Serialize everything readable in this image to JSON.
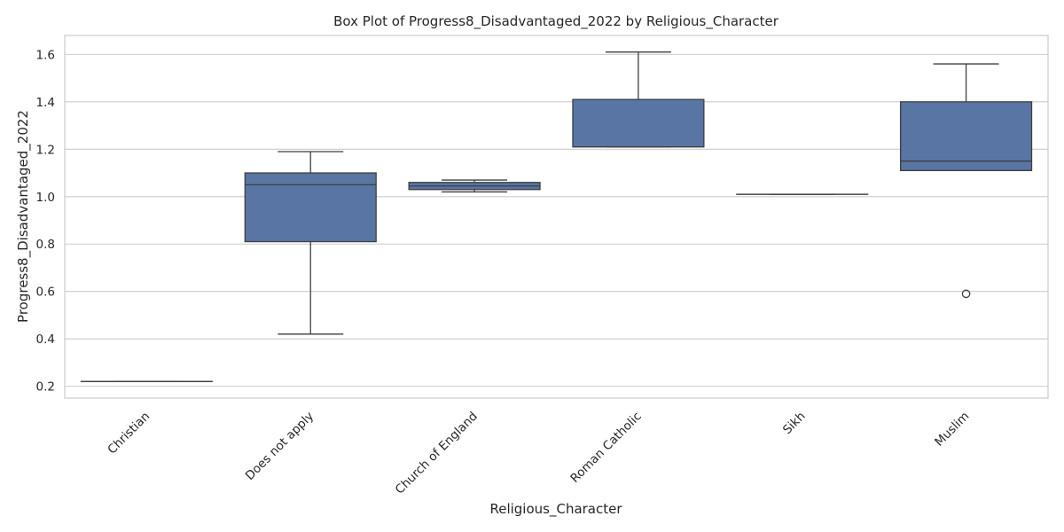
{
  "chart_data": {
    "type": "box",
    "title": "Box Plot of Progress8_Disadvantaged_2022 by Religious_Character",
    "xlabel": "Religious_Character",
    "ylabel": "Progress8_Disadvantaged_2022",
    "ylim": [
      0.15,
      1.68
    ],
    "yticks": [
      0.2,
      0.4,
      0.6,
      0.8,
      1.0,
      1.2,
      1.4,
      1.6
    ],
    "grid": true,
    "box_color": "#5975a4",
    "line_color": "#3f3f3f",
    "categories": [
      "Christian",
      "Does not apply",
      "Church of England",
      "Roman Catholic",
      "Sikh",
      "Muslim"
    ],
    "boxes": [
      {
        "category": "Christian",
        "whisker_low": 0.22,
        "q1": 0.22,
        "median": 0.22,
        "q3": 0.22,
        "whisker_high": 0.22,
        "outliers": []
      },
      {
        "category": "Does not apply",
        "whisker_low": 0.42,
        "q1": 0.81,
        "median": 1.05,
        "q3": 1.1,
        "whisker_high": 1.19,
        "outliers": []
      },
      {
        "category": "Church of England",
        "whisker_low": 1.02,
        "q1": 1.03,
        "median": 1.045,
        "q3": 1.06,
        "whisker_high": 1.07,
        "outliers": []
      },
      {
        "category": "Roman Catholic",
        "whisker_low": 1.21,
        "q1": 1.21,
        "median": 1.21,
        "q3": 1.41,
        "whisker_high": 1.61,
        "outliers": []
      },
      {
        "category": "Sikh",
        "whisker_low": 1.01,
        "q1": 1.01,
        "median": 1.01,
        "q3": 1.01,
        "whisker_high": 1.01,
        "outliers": []
      },
      {
        "category": "Muslim",
        "whisker_low": 1.11,
        "q1": 1.11,
        "median": 1.15,
        "q3": 1.4,
        "whisker_high": 1.56,
        "outliers": [
          0.59
        ]
      }
    ]
  }
}
